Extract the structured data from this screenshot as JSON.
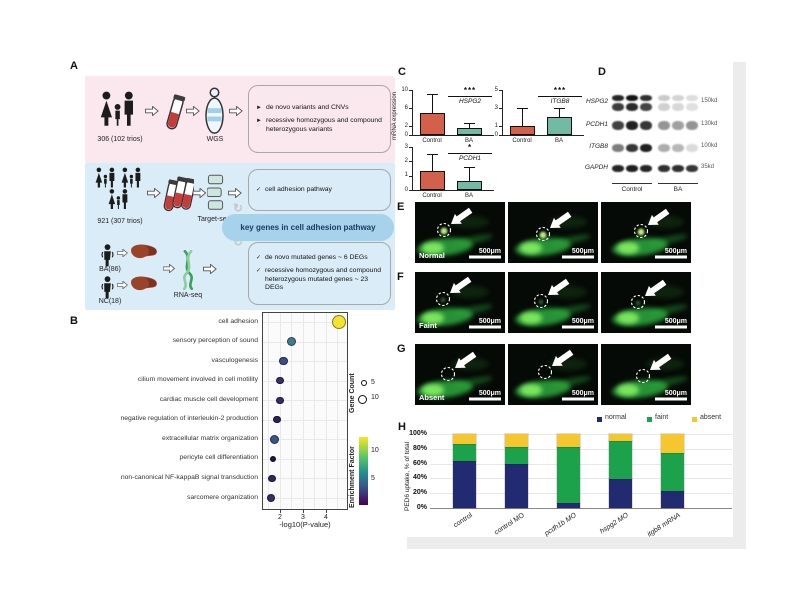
{
  "panelA": {
    "label": "A",
    "wgs": {
      "cohort": "306 (102 trios)",
      "method": "WGS",
      "bullets": [
        {
          "marker": "►",
          "text": "de novo variants and CNVs"
        },
        {
          "marker": "►",
          "text": "recessive homozygous and compound heterozygous variants"
        }
      ]
    },
    "targetseq": {
      "cohort": "921 (307 trios)",
      "method": "Target-seq",
      "bullets": [
        {
          "marker": "✓",
          "text": "cell adhesion pathway"
        }
      ]
    },
    "bubble": "key genes in cell adhesion pathway",
    "rnaseq": {
      "group1": "BA(86)",
      "group2": "NC(18)",
      "method": "RNA-seq",
      "bullets": [
        {
          "marker": "✓",
          "text": "de novo mutated genes ~ 6 DEGs"
        },
        {
          "marker": "✓",
          "text": "recessive homozygous and compound heterozygous mutated genes ~ 23 DEGs"
        }
      ]
    }
  },
  "panelB": {
    "label": "B"
  },
  "panelC": {
    "label": "C",
    "control_color": "#d2604a",
    "ba_color": "#74b9a4"
  },
  "panelD": {
    "label": "D",
    "rows": [
      {
        "gene": "HSPG2",
        "kd": "150kd"
      },
      {
        "gene": "PCDH1",
        "kd": "130kd"
      },
      {
        "gene": "ITGB8",
        "kd": "100kd"
      },
      {
        "gene": "GAPDH",
        "kd": "35kd"
      }
    ],
    "groups": [
      "Control",
      "BA"
    ]
  },
  "micro_rows": [
    {
      "label": "E",
      "condition": "Normal",
      "scalebar": "500μm"
    },
    {
      "label": "F",
      "condition": "Faint",
      "scalebar": "500μm"
    },
    {
      "label": "G",
      "condition": "Absent",
      "scalebar": "500μm"
    }
  ],
  "panelH": {
    "label": "H"
  },
  "chart_data": [
    {
      "id": "panelB_dotplot",
      "type": "scatter",
      "xlabel": "-log10(P-value)",
      "xticks": [
        2,
        3,
        4
      ],
      "xlim": [
        1.2,
        4.95
      ],
      "grid": true,
      "legend": {
        "size_title": "Gene Count",
        "size_entries": [
          5,
          10
        ],
        "color_title": "Enrichment Factor",
        "color_ticks": [
          10,
          5
        ],
        "colormap": "viridis"
      },
      "points": [
        {
          "term": "cell adhesion",
          "x": 4.55,
          "gene_count": 10,
          "enrichment_color": "#f2e331"
        },
        {
          "term": "sensory perception of sound",
          "x": 2.5,
          "gene_count": 5,
          "enrichment_color": "#44798e"
        },
        {
          "term": "vasculogenesis",
          "x": 2.15,
          "gene_count": 4,
          "enrichment_color": "#3c4d8a"
        },
        {
          "term": "cilium movement involved in cell motility",
          "x": 2.0,
          "gene_count": 3,
          "enrichment_color": "#33306a"
        },
        {
          "term": "cardiac muscle cell development",
          "x": 2.0,
          "gene_count": 3,
          "enrichment_color": "#322f68"
        },
        {
          "term": "negative regulation of interleukin-2 production",
          "x": 1.87,
          "gene_count": 3,
          "enrichment_color": "#2d2058"
        },
        {
          "term": "extracellular matrix organization",
          "x": 1.78,
          "gene_count": 5,
          "enrichment_color": "#37538b"
        },
        {
          "term": "pericyte cell differentiation",
          "x": 1.7,
          "gene_count": 2,
          "enrichment_color": "#1e1247"
        },
        {
          "term": "non-canonical NF-kappaB signal transduction",
          "x": 1.65,
          "gene_count": 3,
          "enrichment_color": "#2c2a5e"
        },
        {
          "term": "sarcomere organization",
          "x": 1.6,
          "gene_count": 4,
          "enrichment_color": "#343066"
        }
      ]
    },
    {
      "id": "C1_HSPG2",
      "type": "bar",
      "gene": "HSPG2",
      "significance": "***",
      "ylabel": "mRNA expression",
      "ylim": [
        0,
        10
      ],
      "yticks": [
        0,
        2,
        6,
        10
      ],
      "categories": [
        "Control",
        "BA"
      ],
      "values": [
        5.0,
        1.6
      ],
      "errors": [
        4.0,
        1.0
      ]
    },
    {
      "id": "C2_ITGB8",
      "type": "bar",
      "gene": "ITGB8",
      "significance": "***",
      "ylim": [
        0,
        5
      ],
      "yticks": [
        0,
        1,
        3,
        5
      ],
      "categories": [
        "Control",
        "BA"
      ],
      "values": [
        1.05,
        2.05
      ],
      "errors": [
        1.85,
        0.9
      ]
    },
    {
      "id": "C3_PCDH1",
      "type": "bar",
      "gene": "PCDH1",
      "significance": "*",
      "ylim": [
        0,
        3
      ],
      "yticks": [
        0,
        1,
        2,
        3
      ],
      "categories": [
        "Control",
        "BA"
      ],
      "values": [
        1.35,
        0.65
      ],
      "errors": [
        1.15,
        0.9
      ]
    },
    {
      "id": "H_stacked",
      "type": "stacked-bar",
      "ylabel": "PED6 uptake, % of total",
      "yticks": [
        "0%",
        "20%",
        "40%",
        "60%",
        "80%",
        "100%"
      ],
      "categories": [
        "control",
        "control MO",
        "pcdh1b MO",
        "hspg2 MO",
        "itgb8 mRNA"
      ],
      "series": [
        {
          "name": "normal",
          "color": "#222a72",
          "values": [
            63,
            59,
            7,
            39,
            23
          ]
        },
        {
          "name": "faint",
          "color": "#1da24c",
          "values": [
            24,
            23,
            76,
            52,
            52
          ]
        },
        {
          "name": "absent",
          "color": "#f6c62e",
          "values": [
            13,
            18,
            17,
            9,
            25
          ]
        }
      ]
    }
  ]
}
